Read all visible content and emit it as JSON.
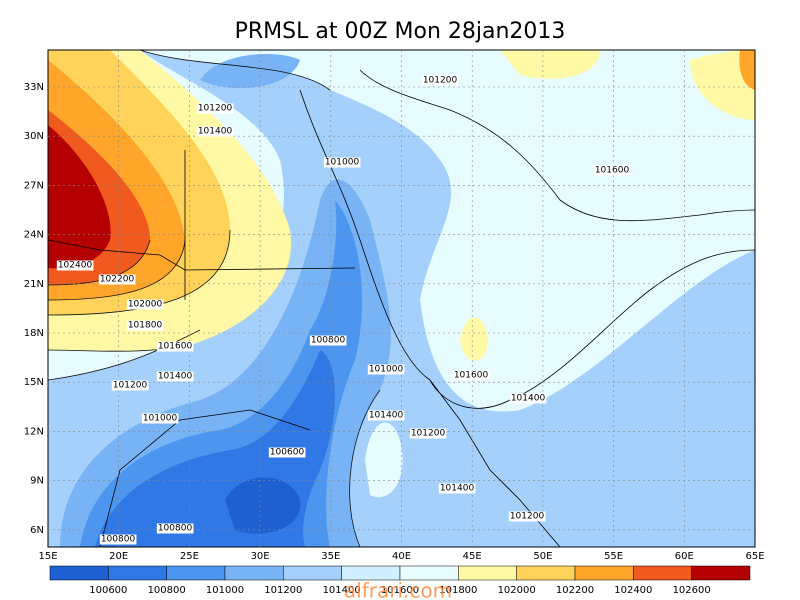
{
  "title": "PRMSL at 00Z Mon 28jan2013",
  "map": {
    "lat_labels": [
      "33N",
      "30N",
      "27N",
      "24N",
      "21N",
      "18N",
      "15N",
      "12N",
      "9N",
      "6N"
    ],
    "lon_labels": [
      "15E",
      "20E",
      "25E",
      "30E",
      "35E",
      "40E",
      "45E",
      "50E",
      "55E",
      "60E",
      "65E"
    ],
    "contour_labels": [
      "101200",
      "101200",
      "101400",
      "101000",
      "101600",
      "102400",
      "102200",
      "102000",
      "101800",
      "101600",
      "100800",
      "101400",
      "101000",
      "101600",
      "101200",
      "101400",
      "101000",
      "101400",
      "101200",
      "100600",
      "101400",
      "101200",
      "100800",
      "100800"
    ]
  },
  "colorbar": {
    "labels": [
      "100600",
      "100800",
      "101000",
      "101200",
      "101400",
      "101600",
      "101800",
      "102000",
      "102200",
      "102400",
      "102600"
    ],
    "colors": [
      "#1e5fd2",
      "#2f78e6",
      "#4c96f0",
      "#78b3f6",
      "#a5d0fb",
      "#d0efff",
      "#e8fdff",
      "#fff9a6",
      "#ffd25a",
      "#ffa52a",
      "#f05a1e",
      "#b40000"
    ]
  },
  "watermark": "alfrari.com"
}
